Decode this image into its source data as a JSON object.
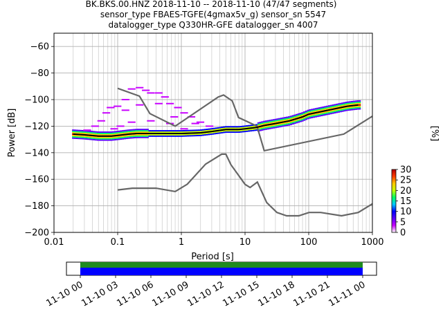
{
  "title_lines": [
    "BK.BKS.00.HNZ   2018-11-10 -- 2018-11-10  (47/47 segments)",
    "sensor_type FBAES-TGFE(4gmax5v_g) sensor_sn 5547",
    "datalogger_type Q330HR-GFE datalogger_sn 4007"
  ],
  "chart_data": {
    "type": "heatmap",
    "xlabel": "Period [s]",
    "ylabel": "Power [dB]",
    "x_scale": "log",
    "xlim": [
      0.01,
      1000
    ],
    "ylim": [
      -200,
      -50
    ],
    "x_ticks": [
      0.01,
      0.1,
      1,
      10,
      100,
      1000
    ],
    "x_tick_labels": [
      "0.01",
      "0.1",
      "1",
      "10",
      "100",
      "1000"
    ],
    "y_ticks": [
      -200,
      -180,
      -160,
      -140,
      -120,
      -100,
      -80,
      -60
    ],
    "y_tick_labels": [
      "−200",
      "−180",
      "−160",
      "−140",
      "−120",
      "−100",
      "−80",
      "−60"
    ],
    "grid": true,
    "colorbar": {
      "label": "[%]",
      "range": [
        0,
        30
      ],
      "ticks": [
        0,
        5,
        10,
        15,
        20,
        25,
        30
      ],
      "tick_labels": [
        "0",
        "5",
        "10",
        "15",
        "20",
        "25",
        "30"
      ],
      "colors": [
        "#ffffff",
        "#c800ff",
        "#5a00ff",
        "#0000ff",
        "#00c8ff",
        "#00ff64",
        "#c8ff00",
        "#ffc800",
        "#ff3c00",
        "#b40000"
      ]
    },
    "noise_model_high": {
      "period": [
        0.1,
        0.22,
        0.32,
        0.8,
        3.8,
        4.6,
        6.3,
        7.9,
        15.4,
        20,
        354.8,
        1000
      ],
      "power": [
        -91.5,
        -97.4,
        -110.5,
        -120,
        -98,
        -96.5,
        -101,
        -113.5,
        -120,
        -138.5,
        -126,
        -112.5
      ]
    },
    "noise_model_low": {
      "period": [
        0.1,
        0.17,
        0.4,
        0.8,
        1.24,
        2.4,
        4.3,
        5,
        6,
        10,
        12,
        15.6,
        21.9,
        31.6,
        45,
        70,
        101,
        154,
        328,
        600,
        1000
      ],
      "power": [
        -168,
        -166.7,
        -166.7,
        -169.2,
        -163.7,
        -148.6,
        -141.1,
        -141.1,
        -149,
        -163.8,
        -166.2,
        -162.1,
        -177.5,
        -185,
        -187.5,
        -187.5,
        -185,
        -185,
        -187.5,
        -185,
        -178.5
      ]
    },
    "mode_curve": {
      "period": [
        0.02,
        0.03,
        0.05,
        0.08,
        0.1,
        0.15,
        0.2,
        0.3,
        0.5,
        0.8,
        1,
        2,
        3,
        5,
        8,
        10,
        15,
        20,
        30,
        50,
        80,
        100,
        200,
        400,
        600
      ],
      "power": [
        -126,
        -126.5,
        -127.5,
        -127.5,
        -127,
        -126,
        -125.5,
        -125.5,
        -125.5,
        -125.5,
        -125.5,
        -125,
        -124,
        -122.5,
        -122.5,
        -122,
        -121,
        -119.5,
        -118,
        -116,
        -113,
        -111,
        -108,
        -105,
        -104
      ]
    },
    "time_axis": {
      "ticks": [
        "11-10 00",
        "11-10 03",
        "11-10 06",
        "11-10 09",
        "11-10 12",
        "11-10 15",
        "11-10 18",
        "11-10 21",
        "11-11 00"
      ],
      "data_coverage_color": "#1f8b1f",
      "processed_coverage_color": "#0000ff"
    }
  }
}
